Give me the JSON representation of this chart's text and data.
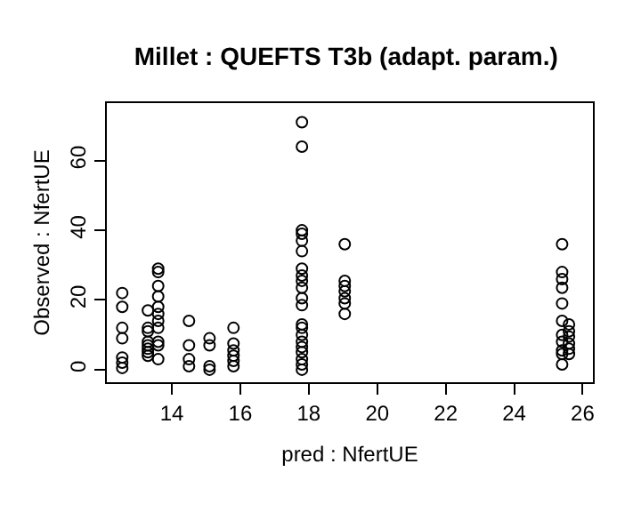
{
  "chart_data": {
    "type": "scatter",
    "title": "Millet : QUEFTS T3b (adapt. param.)",
    "xlabel": "pred : NfertUE",
    "ylabel": "Observed : NfertUE",
    "x": [
      12.55,
      12.55,
      12.55,
      12.55,
      12.55,
      12.55,
      12.55,
      13.3,
      13.3,
      13.3,
      13.3,
      13.3,
      13.3,
      13.3,
      13.3,
      13.6,
      13.6,
      13.6,
      13.6,
      13.6,
      13.6,
      13.6,
      13.6,
      13.6,
      13.6,
      13.6,
      14.5,
      14.5,
      14.5,
      14.5,
      15.1,
      15.1,
      15.1,
      15.1,
      15.8,
      15.8,
      15.8,
      15.8,
      15.8,
      15.8,
      17.8,
      17.8,
      17.8,
      17.8,
      17.8,
      17.8,
      17.8,
      17.8,
      17.8,
      17.8,
      17.8,
      17.8,
      17.8,
      17.8,
      17.8,
      17.8,
      17.8,
      17.8,
      17.8,
      17.8,
      17.8,
      19.05,
      19.05,
      19.05,
      19.05,
      19.05,
      19.05,
      19.05,
      25.4,
      25.4,
      25.4,
      25.4,
      25.4,
      25.4,
      25.4,
      25.4,
      25.4,
      25.4,
      25.4,
      25.6,
      25.6,
      25.6,
      25.6,
      25.6,
      25.6
    ],
    "values": [
      22,
      18,
      12,
      9,
      3.5,
      2,
      0.5,
      17,
      12,
      11,
      8,
      7,
      6,
      5,
      4,
      29,
      28,
      24,
      21,
      18,
      16,
      14,
      12,
      8,
      7,
      3,
      14,
      7,
      3,
      1,
      9,
      7,
      1,
      0,
      12,
      7.5,
      5.5,
      4,
      2.5,
      1,
      71,
      64,
      40,
      39,
      37,
      34,
      29,
      27,
      25.5,
      23.5,
      20.5,
      18.5,
      13,
      12,
      10,
      8,
      6.5,
      5,
      3,
      1.5,
      0,
      36,
      25.5,
      24,
      22.5,
      20.5,
      19,
      16,
      36,
      28,
      26,
      23.5,
      19,
      14,
      10,
      8,
      5.5,
      4.5,
      1.5,
      13,
      11,
      9.5,
      7.5,
      6,
      4.5
    ],
    "color": "#000000",
    "marker": "circle",
    "xlim": [
      12.1,
      26.3
    ],
    "ylim": [
      -3.6,
      76.5
    ],
    "xticks": [
      14,
      16,
      18,
      20,
      22,
      24,
      26
    ],
    "yticks": [
      0,
      20,
      40,
      60
    ],
    "grid": false
  }
}
